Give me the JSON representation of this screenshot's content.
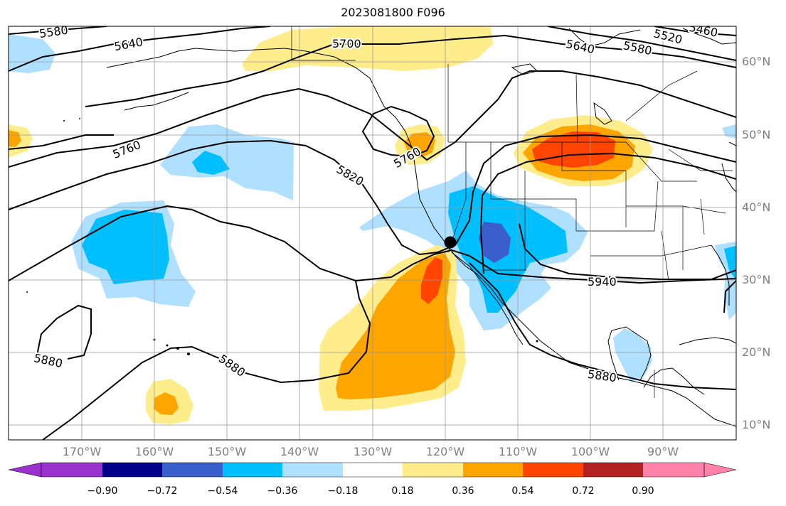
{
  "title": "2023081800 F096",
  "map": {
    "lon_labels": [
      "170°W",
      "160°W",
      "150°W",
      "140°W",
      "130°W",
      "120°W",
      "110°W",
      "100°W",
      "90°W"
    ],
    "lat_labels": [
      "60°N",
      "50°N",
      "40°N",
      "30°N",
      "20°N",
      "10°N"
    ],
    "contour_labels": [
      "5580",
      "5640",
      "5700",
      "5640",
      "5580",
      "5520",
      "5460",
      "5760",
      "5820",
      "5760",
      "5880",
      "5880",
      "5880",
      "5940"
    ],
    "station_marker": "black-dot"
  },
  "colorbar": {
    "ticks": [
      "−0.90",
      "−0.72",
      "−0.54",
      "−0.36",
      "−0.18",
      "0.18",
      "0.36",
      "0.54",
      "0.72",
      "0.90"
    ],
    "colors": [
      "#9932cc",
      "#00008b",
      "#3a5fcd",
      "#00bfff",
      "#b0e0ff",
      "#ffffff",
      "#ffec8b",
      "#ffa500",
      "#ff4500",
      "#b22222",
      "#ff82ab"
    ]
  }
}
